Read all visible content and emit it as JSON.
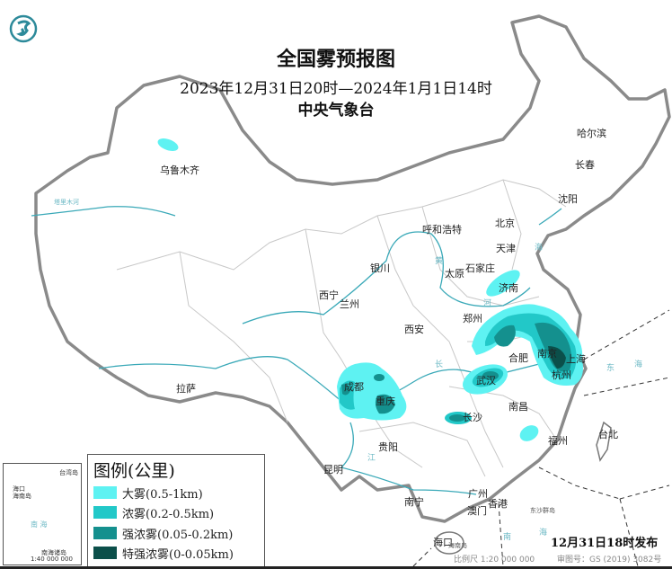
{
  "header": {
    "title": "全国雾预报图",
    "period": "2023年12月31日20时—2024年1月1日14时",
    "issuer": "中央气象台",
    "logo_icon": "cma-dragon-logo"
  },
  "legend": {
    "title": "图例(公里)",
    "items": [
      {
        "label": "大雾(0.5-1km)",
        "color": "#5ef2f2"
      },
      {
        "label": "浓雾(0.2-0.5km)",
        "color": "#22c8c8"
      },
      {
        "label": "强浓雾(0.05-0.2km)",
        "color": "#14908e"
      },
      {
        "label": "特强浓雾(0-0.05km)",
        "color": "#0b4f4a"
      }
    ]
  },
  "cities": {
    "urumqi": "乌鲁木齐",
    "harbin": "哈尔滨",
    "changchun": "长春",
    "shenyang": "沈阳",
    "beijing": "北京",
    "tianjin": "天津",
    "hohhot": "呼和浩特",
    "shijiazhuang": "石家庄",
    "taiyuan": "太原",
    "yinchuan": "银川",
    "jinan": "济南",
    "xining": "西宁",
    "lanzhou": "兰州",
    "zhengzhou": "郑州",
    "xian": "西安",
    "hefei": "合肥",
    "nanjing": "南京",
    "shanghai": "上海",
    "hangzhou": "杭州",
    "wuhan": "武汉",
    "chengdu": "成都",
    "chongqing": "重庆",
    "changsha": "长沙",
    "nanchang": "南昌",
    "lhasa": "拉萨",
    "guiyang": "贵阳",
    "kunming": "昆明",
    "fuzhou": "福州",
    "taipei": "台北",
    "nanning": "南宁",
    "guangzhou": "广州",
    "hongkong": "香港",
    "macau": "澳门",
    "haikou": "海口"
  },
  "water_labels": {
    "yellow_river": "黄",
    "yellow_river2": "河",
    "yangtze": "长",
    "yangtze2": "江",
    "bohai": "海",
    "east_sea": "东",
    "east_sea2": "海",
    "south_sea": "南",
    "south_sea2": "海",
    "hainan": "海南岛",
    "nanhai_islands": "东沙群岛",
    "tarim": "塔里木河"
  },
  "inset": {
    "taiwan": "台湾岛",
    "haikou": "海口",
    "hainan": "海南岛",
    "sea": "南 海",
    "islands": "南海诸岛",
    "scale": "1:40 000 000"
  },
  "footer": {
    "issued": "12月31日18时发布",
    "scale": "比例尺 1:20 000 000",
    "approval": "审图号：GS (2019) 3082号"
  }
}
